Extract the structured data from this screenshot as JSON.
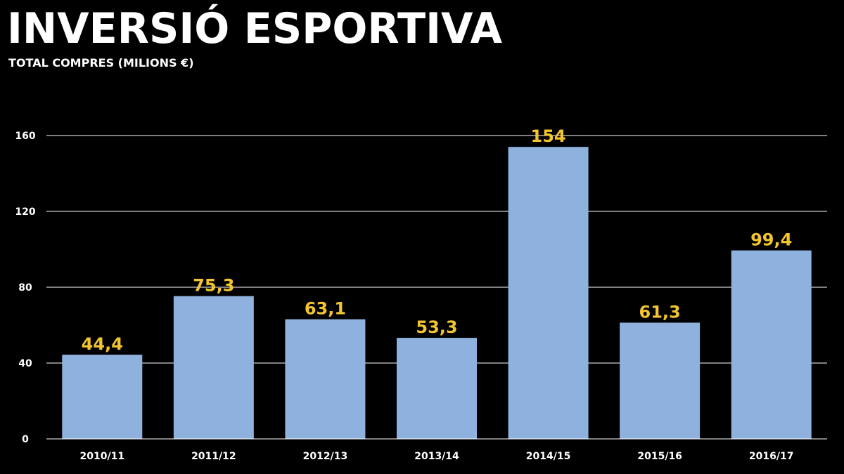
{
  "header": {
    "title": "INVERSIÓ ESPORTIVA",
    "subtitle": "TOTAL COMPRES (MILIONS €)"
  },
  "colors": {
    "background": "#000000",
    "bar": "#8EB1DE",
    "value_label": "#F2C530",
    "grid": "#FFFFFF",
    "text": "#FFFFFF"
  },
  "chart_data": {
    "type": "bar",
    "categories": [
      "2010/11",
      "2011/12",
      "2012/13",
      "2013/14",
      "2014/15",
      "2015/16",
      "2016/17"
    ],
    "values": [
      44.4,
      75.3,
      63.1,
      53.3,
      154,
      61.3,
      99.4
    ],
    "value_labels": [
      "44,4",
      "75,3",
      "63,1",
      "53,3",
      "154",
      "61,3",
      "99,4"
    ],
    "yticks": [
      0,
      40,
      80,
      120,
      160
    ],
    "ylim": [
      0,
      160
    ],
    "grid": true,
    "legend": false,
    "title": "INVERSIÓ ESPORTIVA",
    "subtitle": "TOTAL COMPRES (MILIONS €)"
  }
}
